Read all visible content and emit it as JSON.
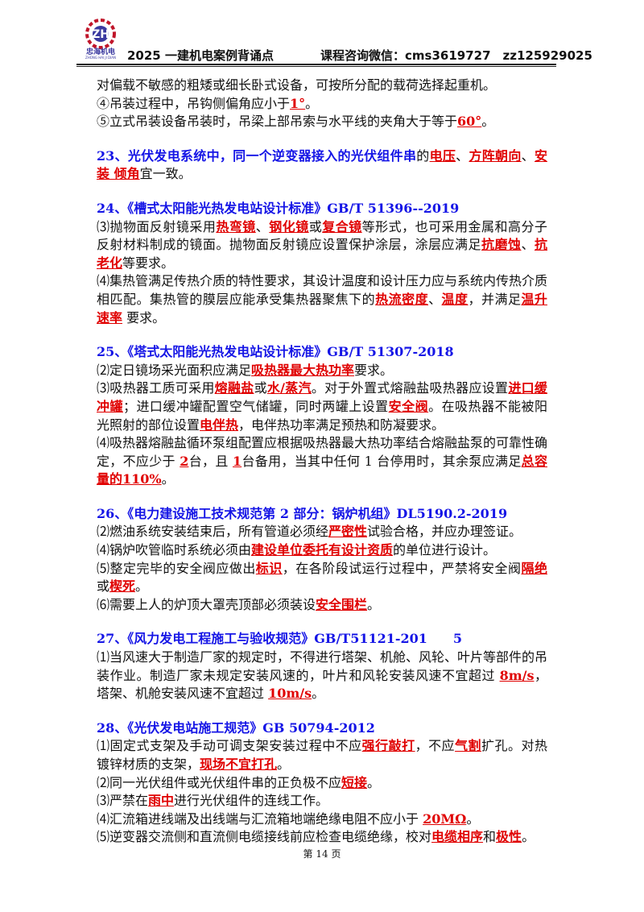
{
  "header": {
    "logo_cn": "忠海机电",
    "logo_en": "ZHONG HAI JI DIAN",
    "title": "2025 一建机电案例背诵点",
    "contact": "课程咨询微信：cms3619727　zz125929025"
  },
  "sections": [
    {
      "paragraphs": [
        {
          "runs": [
            {
              "text": "对偏载不敏感的粗矮或细长卧式设备，可按所分配的载荷选择起重机。"
            }
          ]
        },
        {
          "runs": [
            {
              "text": "④吊装过程中，吊钩侧偏角应小于"
            },
            {
              "text": "1°",
              "color": "red"
            },
            {
              "text": "。"
            }
          ]
        },
        {
          "runs": [
            {
              "text": "⑤立式吊装设备吊装时，吊梁上部吊索与水平线的夹角大于等于"
            },
            {
              "text": "60°",
              "color": "red"
            },
            {
              "text": "。"
            }
          ]
        }
      ]
    },
    {
      "paragraphs": [
        {
          "runs": [
            {
              "text": "23、光伏发电系统中，同一个逆变器接入的光伏组件串",
              "color": "blue"
            },
            {
              "text": "的"
            },
            {
              "text": "电压",
              "color": "red"
            },
            {
              "text": "、"
            },
            {
              "text": "方阵朝向",
              "color": "red"
            },
            {
              "text": "、"
            },
            {
              "text": "安装 倾角",
              "color": "red"
            },
            {
              "text": "宜一致。"
            }
          ]
        }
      ]
    },
    {
      "paragraphs": [
        {
          "runs": [
            {
              "text": "24、《槽式太阳能光热发电站设计标准》GB/T 51396--2019",
              "color": "blue"
            }
          ]
        },
        {
          "runs": [
            {
              "text": "⑶抛物面反射镜采用"
            },
            {
              "text": "热弯镜",
              "color": "red"
            },
            {
              "text": "、"
            },
            {
              "text": "钢化镜",
              "color": "red"
            },
            {
              "text": "或"
            },
            {
              "text": "复合镜",
              "color": "red"
            },
            {
              "text": "等形式，也可采用金属和高分子反射材料制成的镜面。抛物面反射镜应设置保护涂层，涂层应满足"
            },
            {
              "text": "抗磨蚀",
              "color": "red"
            },
            {
              "text": "、"
            },
            {
              "text": "抗老化",
              "color": "red"
            },
            {
              "text": "等要求。"
            }
          ]
        },
        {
          "runs": [
            {
              "text": "⑷集热管满足传热介质的特性要求，其设计温度和设计压力应与系统内传热介质相匹配。集热管的膜层应能承受集热器聚焦下的"
            },
            {
              "text": "热流密度",
              "color": "red"
            },
            {
              "text": "、"
            },
            {
              "text": "温度",
              "color": "red"
            },
            {
              "text": "，并满足"
            },
            {
              "text": "温升速率",
              "color": "red"
            },
            {
              "text": " 要求。"
            }
          ]
        }
      ]
    },
    {
      "paragraphs": [
        {
          "runs": [
            {
              "text": "25、《塔式太阳能光热发电站设计标准》GB/T 51307-2018",
              "color": "blue"
            }
          ]
        },
        {
          "runs": [
            {
              "text": "⑵定日镜场采光面积应满足"
            },
            {
              "text": "吸热器最大热功率",
              "color": "red"
            },
            {
              "text": "要求。"
            }
          ]
        },
        {
          "runs": [
            {
              "text": "⑶吸热器工质可采用"
            },
            {
              "text": "熔融盐",
              "color": "red"
            },
            {
              "text": "或"
            },
            {
              "text": "水/蒸汽",
              "color": "red"
            },
            {
              "text": "。对于外置式熔融盐吸热器应设置"
            },
            {
              "text": "进口缓冲罐",
              "color": "red"
            },
            {
              "text": "；进口缓冲罐配置空气储罐，同时两罐上设置"
            },
            {
              "text": "安全阀",
              "color": "red"
            },
            {
              "text": "。在吸热器不能被阳光照射的部位设置"
            },
            {
              "text": "电伴热",
              "color": "red"
            },
            {
              "text": "，电伴热功率满足预热和防凝要求。"
            }
          ]
        },
        {
          "runs": [
            {
              "text": "⑷吸热器熔融盐循环泵组配置应根据吸热器最大热功率结合熔融盐泵的可靠性确定，不应少于 "
            },
            {
              "text": "2",
              "color": "red"
            },
            {
              "text": "台，且 "
            },
            {
              "text": "1",
              "color": "red"
            },
            {
              "text": "台备用，当其中任何 1 台停用时，其余泵应满足"
            },
            {
              "text": "总容量的110%",
              "color": "red"
            },
            {
              "text": "。"
            }
          ]
        }
      ]
    },
    {
      "paragraphs": [
        {
          "runs": [
            {
              "text": "26、《电力建设施工技术规范第 2 部分：锅炉机组》DL5190.2-2019",
              "color": "blue"
            }
          ]
        },
        {
          "runs": [
            {
              "text": "⑵燃油系统安装结束后，所有管道必须经"
            },
            {
              "text": "严密性",
              "color": "red"
            },
            {
              "text": "试验合格，并应办理签证。"
            }
          ]
        },
        {
          "runs": [
            {
              "text": "⑷锅炉吹管临时系统必须由"
            },
            {
              "text": "建设单位委托有设计资质",
              "color": "red"
            },
            {
              "text": "的单位进行设计。"
            }
          ]
        },
        {
          "runs": [
            {
              "text": "⑸整定完毕的安全阀应做出"
            },
            {
              "text": "标识",
              "color": "red"
            },
            {
              "text": "，在各阶段试运行过程中，严禁将安全阀"
            },
            {
              "text": "隔绝",
              "color": "red"
            },
            {
              "text": "或"
            },
            {
              "text": "楔死",
              "color": "red"
            },
            {
              "text": "。"
            }
          ]
        },
        {
          "runs": [
            {
              "text": "⑹需要上人的炉顶大罩壳顶部必须装设"
            },
            {
              "text": "安全围栏",
              "color": "red"
            },
            {
              "text": "。"
            }
          ]
        }
      ]
    },
    {
      "paragraphs": [
        {
          "runs": [
            {
              "text": "27、《风力发电工程施工与验收规范》GB/T51121-201　　5",
              "color": "blue"
            }
          ]
        },
        {
          "runs": [
            {
              "text": "⑴当风速大于制造厂家的规定时，不得进行塔架、机舱、风轮、叶片等部件的吊装作业。制造厂家未规定安装风速的，叶片和风轮安装风速不宜超过 "
            },
            {
              "text": "8m/s",
              "color": "red"
            },
            {
              "text": "， 塔架、机舱安装风速不宜超过 "
            },
            {
              "text": "10m/s",
              "color": "red"
            },
            {
              "text": "。"
            }
          ]
        }
      ]
    },
    {
      "paragraphs": [
        {
          "runs": [
            {
              "text": "28、《光伏发电站施工规范》GB 50794-2012",
              "color": "blue"
            }
          ]
        },
        {
          "runs": [
            {
              "text": "⑴固定式支架及手动可调支架安装过程中不应"
            },
            {
              "text": "强行敲打",
              "color": "red"
            },
            {
              "text": "，不应"
            },
            {
              "text": "气割",
              "color": "red"
            },
            {
              "text": "扩孔。对热镀锌材质的支架，"
            },
            {
              "text": "现场不宜打孔",
              "color": "red"
            },
            {
              "text": "。"
            }
          ]
        },
        {
          "runs": [
            {
              "text": "⑵同一光伏组件或光伏组件串的正负极不应"
            },
            {
              "text": "短接",
              "color": "red"
            },
            {
              "text": "。"
            }
          ]
        },
        {
          "runs": [
            {
              "text": "⑶严禁在"
            },
            {
              "text": "雨中",
              "color": "red"
            },
            {
              "text": "进行光伏组件的连线工作。"
            }
          ]
        },
        {
          "runs": [
            {
              "text": "⑷汇流箱进线端及出线端与汇流箱地端绝缘电阻不应小于 "
            },
            {
              "text": "20MΩ",
              "color": "red"
            },
            {
              "text": "。"
            }
          ]
        },
        {
          "runs": [
            {
              "text": "⑸逆变器交流侧和直流侧电缆接线前应检查电缆绝缘，校对"
            },
            {
              "text": "电缆相序",
              "color": "red"
            },
            {
              "text": "和"
            },
            {
              "text": "极性",
              "color": "red"
            },
            {
              "text": "。"
            }
          ]
        }
      ]
    }
  ],
  "footer": {
    "page": "第 14 页"
  }
}
